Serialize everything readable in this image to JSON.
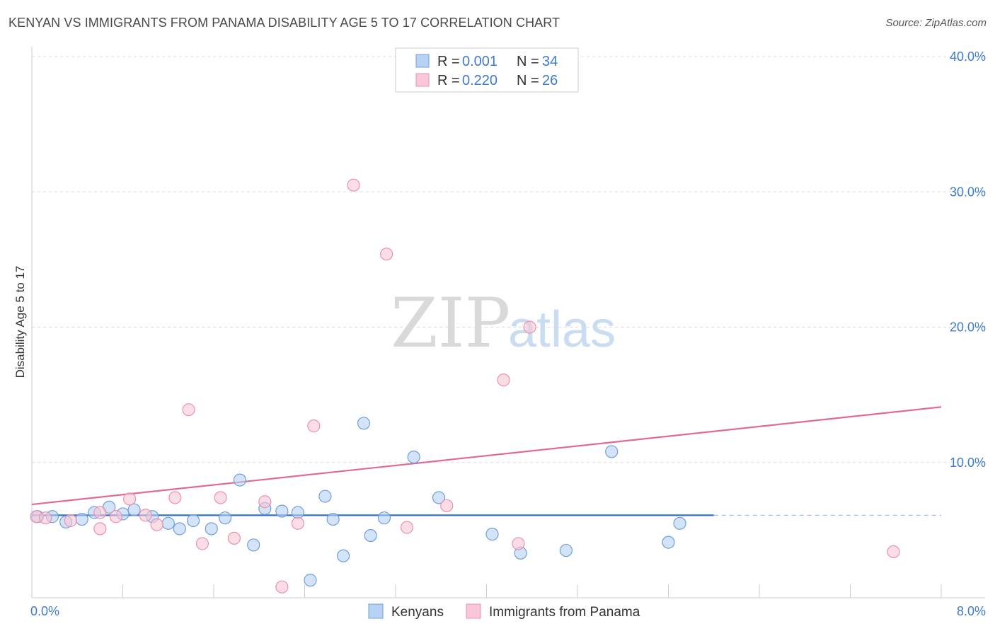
{
  "header": {
    "title": "KENYAN VS IMMIGRANTS FROM PANAMA DISABILITY AGE 5 TO 17 CORRELATION CHART",
    "source": "Source: ZipAtlas.com"
  },
  "watermark": {
    "zip": "ZIP",
    "atlas": "atlas"
  },
  "colors": {
    "kenyan_fill": "#b8d2f3",
    "kenyan_stroke": "#6f9fdc",
    "kenyan_line": "#2f6fd6",
    "panama_fill": "#f9c7d6",
    "panama_stroke": "#e993b0",
    "panama_line": "#e06a95",
    "tick_text": "#3d7bd0",
    "grid": "#dcdcdc"
  },
  "legend": {
    "kenyan": {
      "r_label": "R =",
      "r_value": "0.001",
      "n_label": "N =",
      "n_value": "34"
    },
    "panama": {
      "r_label": "R =",
      "r_value": "0.220",
      "n_label": "N =",
      "n_value": "26"
    }
  },
  "chart_data": {
    "type": "scatter",
    "title": "KENYAN VS IMMIGRANTS FROM PANAMA DISABILITY AGE 5 TO 17 CORRELATION CHART",
    "xlabel": "",
    "ylabel": "Disability Age 5 to 17",
    "xlim": [
      0,
      8
    ],
    "ylim": [
      0,
      40
    ],
    "x_ticks": [
      0,
      8
    ],
    "x_tick_labels": [
      "0.0%",
      "8.0%"
    ],
    "y_ticks": [
      10,
      20,
      30,
      40
    ],
    "y_tick_labels": [
      "10.0%",
      "20.0%",
      "30.0%",
      "40.0%"
    ],
    "grid": true,
    "legend_position": "top-center",
    "series": [
      {
        "name": "Kenyans",
        "points": [
          [
            0.05,
            6.0
          ],
          [
            0.18,
            6.0
          ],
          [
            0.3,
            5.6
          ],
          [
            0.44,
            5.8
          ],
          [
            0.55,
            6.3
          ],
          [
            0.68,
            6.7
          ],
          [
            0.8,
            6.2
          ],
          [
            0.9,
            6.5
          ],
          [
            1.06,
            6.0
          ],
          [
            1.2,
            5.5
          ],
          [
            1.3,
            5.1
          ],
          [
            1.42,
            5.7
          ],
          [
            1.58,
            5.1
          ],
          [
            1.7,
            5.9
          ],
          [
            1.83,
            8.7
          ],
          [
            1.95,
            3.9
          ],
          [
            2.05,
            6.6
          ],
          [
            2.2,
            6.4
          ],
          [
            2.34,
            6.3
          ],
          [
            2.45,
            1.3
          ],
          [
            2.58,
            7.5
          ],
          [
            2.65,
            5.8
          ],
          [
            2.74,
            3.1
          ],
          [
            2.92,
            12.9
          ],
          [
            2.98,
            4.6
          ],
          [
            3.1,
            5.9
          ],
          [
            3.36,
            10.4
          ],
          [
            3.58,
            7.4
          ],
          [
            4.05,
            4.7
          ],
          [
            4.3,
            3.3
          ],
          [
            4.7,
            3.5
          ],
          [
            5.1,
            10.8
          ],
          [
            5.6,
            4.1
          ],
          [
            5.7,
            5.5
          ]
        ],
        "trend": {
          "x": [
            0,
            6.0
          ],
          "y": [
            6.1,
            6.1
          ],
          "dashed_extension_to": 8
        }
      },
      {
        "name": "Immigrants from Panama",
        "points": [
          [
            0.04,
            6.0
          ],
          [
            0.12,
            5.9
          ],
          [
            0.34,
            5.7
          ],
          [
            0.6,
            6.3
          ],
          [
            0.6,
            5.1
          ],
          [
            0.74,
            6.0
          ],
          [
            0.86,
            7.3
          ],
          [
            1.0,
            6.1
          ],
          [
            1.1,
            5.4
          ],
          [
            1.26,
            7.4
          ],
          [
            1.38,
            13.9
          ],
          [
            1.5,
            4.0
          ],
          [
            1.66,
            7.4
          ],
          [
            1.78,
            4.4
          ],
          [
            2.05,
            7.1
          ],
          [
            2.2,
            0.8
          ],
          [
            2.34,
            5.5
          ],
          [
            2.48,
            12.7
          ],
          [
            2.83,
            30.5
          ],
          [
            3.12,
            25.4
          ],
          [
            3.3,
            5.2
          ],
          [
            3.65,
            6.8
          ],
          [
            4.15,
            16.1
          ],
          [
            4.28,
            4.0
          ],
          [
            4.38,
            20.0
          ],
          [
            7.58,
            3.4
          ]
        ],
        "trend": {
          "x": [
            0,
            8
          ],
          "y": [
            6.9,
            14.1
          ]
        }
      }
    ]
  },
  "bottom_legend": {
    "kenyan_label": "Kenyans",
    "panama_label": "Immigrants from Panama"
  }
}
